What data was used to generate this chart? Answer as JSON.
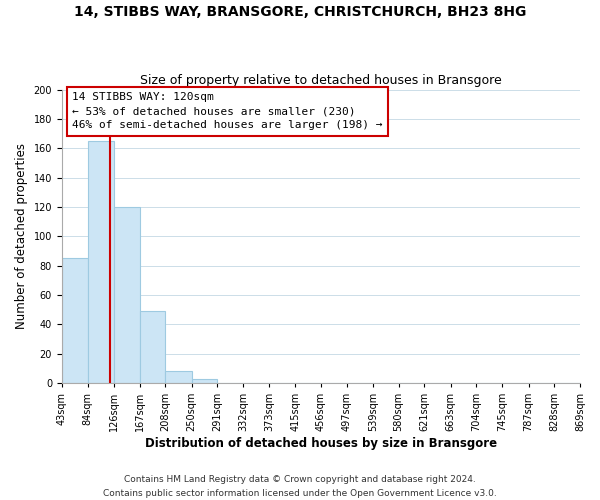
{
  "title": "14, STIBBS WAY, BRANSGORE, CHRISTCHURCH, BH23 8HG",
  "subtitle": "Size of property relative to detached houses in Bransgore",
  "xlabel": "Distribution of detached houses by size in Bransgore",
  "ylabel": "Number of detached properties",
  "bar_edges": [
    43,
    84,
    126,
    167,
    208,
    250,
    291,
    332,
    373,
    415,
    456,
    497,
    539,
    580,
    621,
    663,
    704,
    745,
    787,
    828,
    869
  ],
  "bar_heights": [
    85,
    165,
    120,
    49,
    8,
    3,
    0,
    0,
    0,
    0,
    0,
    0,
    0,
    0,
    0,
    0,
    0,
    0,
    0,
    0
  ],
  "bar_color": "#cce5f5",
  "bar_edgecolor": "#9ecae1",
  "vline_x": 120,
  "vline_color": "#cc0000",
  "ylim": [
    0,
    200
  ],
  "yticks": [
    0,
    20,
    40,
    60,
    80,
    100,
    120,
    140,
    160,
    180,
    200
  ],
  "annotation_line1": "14 STIBBS WAY: 120sqm",
  "annotation_line2": "← 53% of detached houses are smaller (230)",
  "annotation_line3": "46% of semi-detached houses are larger (198) →",
  "footer_line1": "Contains HM Land Registry data © Crown copyright and database right 2024.",
  "footer_line2": "Contains public sector information licensed under the Open Government Licence v3.0.",
  "background_color": "#ffffff",
  "grid_color": "#ccdde8",
  "title_fontsize": 10,
  "subtitle_fontsize": 9,
  "tick_label_fontsize": 7,
  "axis_label_fontsize": 8.5,
  "annotation_fontsize": 8,
  "footer_fontsize": 6.5
}
